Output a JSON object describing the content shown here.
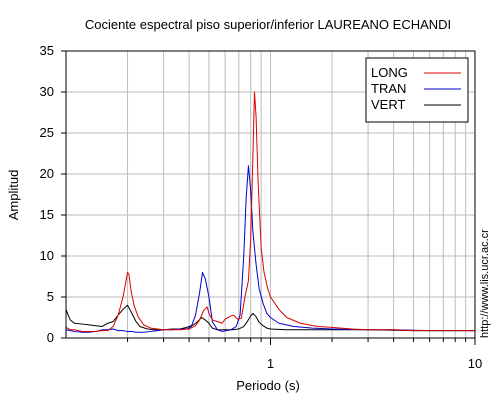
{
  "chart_data": {
    "type": "line",
    "title": "Cociente espectral piso superior/inferior LAUREANO ECHANDI",
    "xlabel": "Periodo (s)",
    "ylabel": "Amplitud",
    "x_scale": "log",
    "xlim": [
      0.1,
      10
    ],
    "ylim": [
      0,
      35
    ],
    "x_ticks": [
      {
        "value": 1,
        "label": "1"
      },
      {
        "value": 10,
        "label": "10"
      }
    ],
    "y_ticks": [
      {
        "value": 0,
        "label": "0"
      },
      {
        "value": 5,
        "label": "5"
      },
      {
        "value": 10,
        "label": "10"
      },
      {
        "value": 15,
        "label": "15"
      },
      {
        "value": 20,
        "label": "20"
      },
      {
        "value": 25,
        "label": "25"
      },
      {
        "value": 30,
        "label": "30"
      },
      {
        "value": 35,
        "label": "35"
      }
    ],
    "grid": true,
    "legend_position": "top-right",
    "credit": "http://www.lis.ucr.ac.cr",
    "series": [
      {
        "name": "LONG",
        "color": "#dd0000",
        "points": [
          [
            0.1,
            1.3
          ],
          [
            0.103,
            1.1
          ],
          [
            0.107,
            1.0
          ],
          [
            0.11,
            1.0
          ],
          [
            0.12,
            0.8
          ],
          [
            0.13,
            0.8
          ],
          [
            0.14,
            0.8
          ],
          [
            0.15,
            0.9
          ],
          [
            0.16,
            0.9
          ],
          [
            0.17,
            1.4
          ],
          [
            0.18,
            2.8
          ],
          [
            0.19,
            5.0
          ],
          [
            0.196,
            6.8
          ],
          [
            0.2,
            8.0
          ],
          [
            0.203,
            7.8
          ],
          [
            0.208,
            5.8
          ],
          [
            0.215,
            4.0
          ],
          [
            0.225,
            2.6
          ],
          [
            0.24,
            1.6
          ],
          [
            0.26,
            1.2
          ],
          [
            0.28,
            1.1
          ],
          [
            0.3,
            1.0
          ],
          [
            0.33,
            1.0
          ],
          [
            0.36,
            1.0
          ],
          [
            0.4,
            1.1
          ],
          [
            0.43,
            1.5
          ],
          [
            0.45,
            2.2
          ],
          [
            0.47,
            3.3
          ],
          [
            0.49,
            3.8
          ],
          [
            0.5,
            3.0
          ],
          [
            0.52,
            2.2
          ],
          [
            0.55,
            2.0
          ],
          [
            0.58,
            1.8
          ],
          [
            0.6,
            2.3
          ],
          [
            0.63,
            2.6
          ],
          [
            0.66,
            2.8
          ],
          [
            0.69,
            2.3
          ],
          [
            0.72,
            2.4
          ],
          [
            0.75,
            5.0
          ],
          [
            0.78,
            7.0
          ],
          [
            0.8,
            12.0
          ],
          [
            0.82,
            22.0
          ],
          [
            0.835,
            30.0
          ],
          [
            0.85,
            27.0
          ],
          [
            0.87,
            19.0
          ],
          [
            0.9,
            11.0
          ],
          [
            0.93,
            8.0
          ],
          [
            0.97,
            6.0
          ],
          [
            1.0,
            5.0
          ],
          [
            1.1,
            3.5
          ],
          [
            1.2,
            2.5
          ],
          [
            1.4,
            1.8
          ],
          [
            1.7,
            1.4
          ],
          [
            2.0,
            1.3
          ],
          [
            2.5,
            1.1
          ],
          [
            3.0,
            1.0
          ],
          [
            4.0,
            1.0
          ],
          [
            5.0,
            0.9
          ],
          [
            7.0,
            0.9
          ],
          [
            10.0,
            0.9
          ]
        ]
      },
      {
        "name": "TRAN",
        "color": "#0000cc",
        "points": [
          [
            0.1,
            1.0
          ],
          [
            0.105,
            0.9
          ],
          [
            0.11,
            0.8
          ],
          [
            0.12,
            0.7
          ],
          [
            0.13,
            0.7
          ],
          [
            0.14,
            0.8
          ],
          [
            0.15,
            1.0
          ],
          [
            0.16,
            1.0
          ],
          [
            0.17,
            1.1
          ],
          [
            0.18,
            0.9
          ],
          [
            0.19,
            0.9
          ],
          [
            0.2,
            0.8
          ],
          [
            0.21,
            0.8
          ],
          [
            0.22,
            0.7
          ],
          [
            0.24,
            0.7
          ],
          [
            0.26,
            0.8
          ],
          [
            0.28,
            0.9
          ],
          [
            0.3,
            1.0
          ],
          [
            0.33,
            1.0
          ],
          [
            0.36,
            1.1
          ],
          [
            0.39,
            1.1
          ],
          [
            0.41,
            1.4
          ],
          [
            0.43,
            2.8
          ],
          [
            0.45,
            5.5
          ],
          [
            0.465,
            8.0
          ],
          [
            0.48,
            7.2
          ],
          [
            0.5,
            5.0
          ],
          [
            0.52,
            2.0
          ],
          [
            0.55,
            1.0
          ],
          [
            0.58,
            0.8
          ],
          [
            0.61,
            0.9
          ],
          [
            0.64,
            1.0
          ],
          [
            0.68,
            1.4
          ],
          [
            0.71,
            2.8
          ],
          [
            0.74,
            10.0
          ],
          [
            0.76,
            17.0
          ],
          [
            0.78,
            21.0
          ],
          [
            0.8,
            18.0
          ],
          [
            0.82,
            13.0
          ],
          [
            0.85,
            9.0
          ],
          [
            0.88,
            6.0
          ],
          [
            0.92,
            4.2
          ],
          [
            0.96,
            3.0
          ],
          [
            1.0,
            2.5
          ],
          [
            1.1,
            1.8
          ],
          [
            1.3,
            1.4
          ],
          [
            1.6,
            1.2
          ],
          [
            2.0,
            1.1
          ],
          [
            3.0,
            1.0
          ],
          [
            4.0,
            1.0
          ],
          [
            6.0,
            0.9
          ],
          [
            10.0,
            0.9
          ]
        ]
      },
      {
        "name": "VERT",
        "color": "#000000",
        "points": [
          [
            0.1,
            3.5
          ],
          [
            0.102,
            2.9
          ],
          [
            0.105,
            2.2
          ],
          [
            0.11,
            1.8
          ],
          [
            0.12,
            1.7
          ],
          [
            0.13,
            1.6
          ],
          [
            0.14,
            1.5
          ],
          [
            0.15,
            1.4
          ],
          [
            0.16,
            1.8
          ],
          [
            0.17,
            2.0
          ],
          [
            0.18,
            2.8
          ],
          [
            0.19,
            3.5
          ],
          [
            0.2,
            4.0
          ],
          [
            0.21,
            3.0
          ],
          [
            0.22,
            2.0
          ],
          [
            0.23,
            1.4
          ],
          [
            0.25,
            1.1
          ],
          [
            0.27,
            1.0
          ],
          [
            0.3,
            1.0
          ],
          [
            0.33,
            1.1
          ],
          [
            0.36,
            1.1
          ],
          [
            0.39,
            1.3
          ],
          [
            0.42,
            1.6
          ],
          [
            0.44,
            2.0
          ],
          [
            0.46,
            2.5
          ],
          [
            0.48,
            2.2
          ],
          [
            0.5,
            1.8
          ],
          [
            0.52,
            1.2
          ],
          [
            0.55,
            1.0
          ],
          [
            0.6,
            1.0
          ],
          [
            0.65,
            1.0
          ],
          [
            0.7,
            1.1
          ],
          [
            0.74,
            1.4
          ],
          [
            0.77,
            2.0
          ],
          [
            0.8,
            2.7
          ],
          [
            0.82,
            3.0
          ],
          [
            0.85,
            2.6
          ],
          [
            0.88,
            1.9
          ],
          [
            0.92,
            1.5
          ],
          [
            0.96,
            1.2
          ],
          [
            1.0,
            1.1
          ],
          [
            1.2,
            1.0
          ],
          [
            1.5,
            1.0
          ],
          [
            2.0,
            1.0
          ],
          [
            3.0,
            1.0
          ],
          [
            5.0,
            0.9
          ],
          [
            7.0,
            0.9
          ],
          [
            10.0,
            0.9
          ]
        ]
      }
    ]
  }
}
